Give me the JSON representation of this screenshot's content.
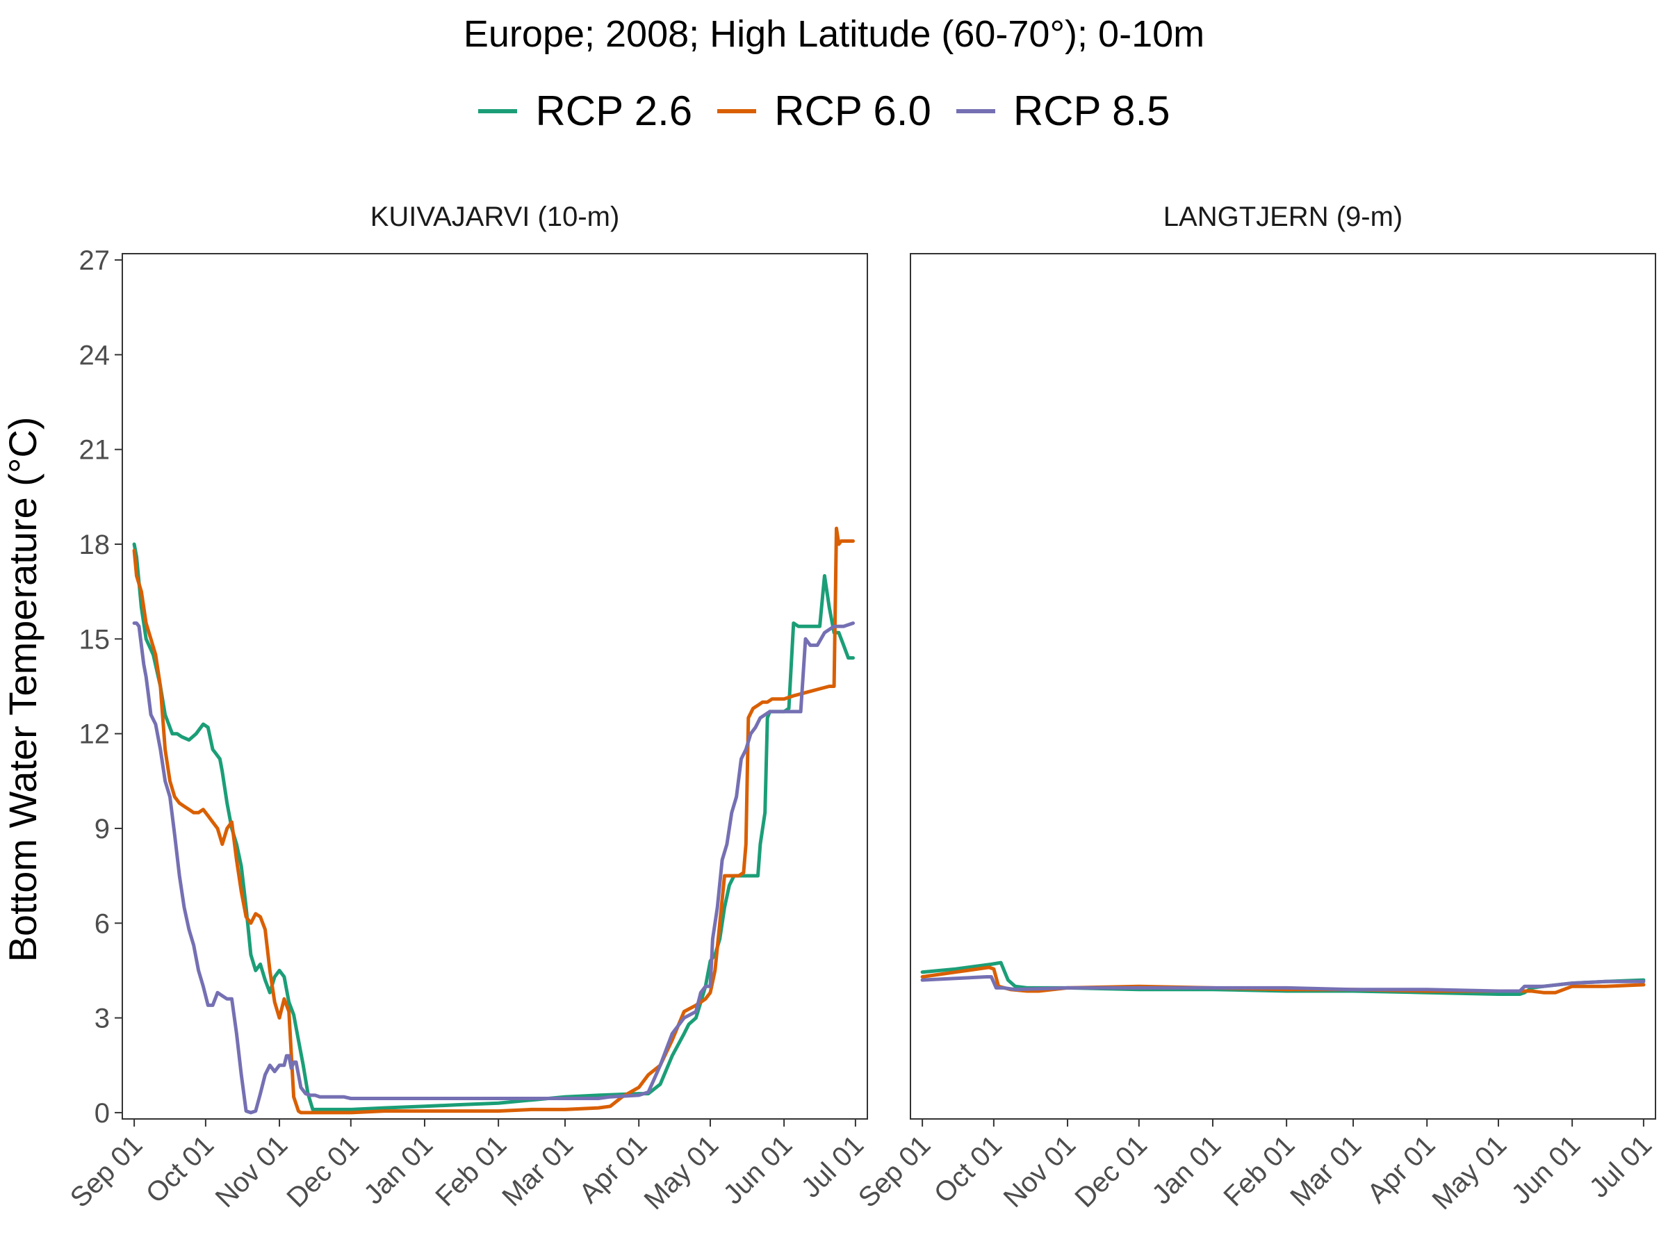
{
  "title": "Europe;  2008;  High Latitude (60-70°);  0-10m",
  "legend": [
    {
      "name": "RCP 2.6",
      "color": "#1b9e77"
    },
    {
      "name": "RCP 6.0",
      "color": "#d95f02"
    },
    {
      "name": "RCP 8.5",
      "color": "#7570b3"
    }
  ],
  "chart_data": [
    {
      "type": "line",
      "title": "KUIVAJARVI (10-m)",
      "ylabel": "Bottom Water Temperature (°C)",
      "xlabel": "",
      "x_ticks": [
        "Sep 01",
        "Oct 01",
        "Nov 01",
        "Dec 01",
        "Jan 01",
        "Feb 01",
        "Mar 01",
        "Apr 01",
        "May 01",
        "Jun 01",
        "Jul 01"
      ],
      "y_ticks": [
        0,
        3,
        6,
        9,
        12,
        15,
        18,
        21,
        24,
        27
      ],
      "ylim": [
        0,
        27
      ],
      "grid": false,
      "series": [
        {
          "name": "RCP 2.6",
          "x": [
            "Sep 01",
            "Sep 02",
            "Sep 04",
            "Sep 06",
            "Sep 09",
            "Sep 12",
            "Sep 14",
            "Sep 17",
            "Sep 19",
            "Sep 21",
            "Sep 24",
            "Sep 27",
            "Sep 30",
            "Oct 02",
            "Oct 04",
            "Oct 05",
            "Oct 07",
            "Oct 08",
            "Oct 10",
            "Oct 12",
            "Oct 14",
            "Oct 16",
            "Oct 18",
            "Oct 20",
            "Oct 22",
            "Oct 24",
            "Oct 26",
            "Oct 28",
            "Oct 30",
            "Nov 01",
            "Nov 03",
            "Nov 05",
            "Nov 07",
            "Nov 09",
            "Nov 11",
            "Nov 13",
            "Nov 15",
            "Nov 17",
            "Nov 19",
            "Nov 20",
            "Nov 21",
            "Nov 22",
            "Nov 23",
            "Dec 01",
            "Dec 15",
            "Jan 01",
            "Jan 15",
            "Feb 01",
            "Feb 15",
            "Mar 01",
            "Mar 15",
            "Apr 01",
            "Apr 05",
            "Apr 10",
            "Apr 15",
            "Apr 20",
            "Apr 22",
            "Apr 25",
            "Apr 27",
            "Apr 29",
            "May 01",
            "May 03",
            "May 05",
            "May 07",
            "May 09",
            "May 11",
            "May 13",
            "May 15",
            "May 17",
            "May 19",
            "May 21",
            "May 22",
            "May 23",
            "May 24",
            "May 25",
            "May 26",
            "May 27",
            "May 28",
            "May 29",
            "May 30",
            "Jun 01",
            "Jun 03",
            "Jun 05",
            "Jun 07",
            "Jun 10",
            "Jun 13",
            "Jun 16",
            "Jun 18",
            "Jun 20",
            "Jun 22",
            "Jun 24",
            "Jun 26",
            "Jun 28",
            "Jun 30"
          ],
          "y": [
            18.0,
            17.6,
            16.0,
            15.0,
            14.5,
            13.5,
            12.6,
            12.0,
            12.0,
            11.9,
            11.8,
            12.0,
            12.3,
            12.2,
            11.5,
            11.4,
            11.2,
            10.8,
            9.8,
            9.0,
            8.5,
            7.8,
            6.5,
            5.0,
            4.5,
            4.7,
            4.2,
            3.8,
            4.3,
            4.5,
            4.3,
            3.5,
            3.1,
            2.3,
            1.5,
            0.6,
            0.1,
            0.1,
            0.1,
            0.1,
            0.1,
            0.1,
            0.1,
            0.1,
            0.15,
            0.2,
            0.25,
            0.3,
            0.4,
            0.5,
            0.55,
            0.6,
            0.6,
            0.9,
            1.8,
            2.5,
            2.8,
            3.0,
            3.5,
            4.0,
            4.8,
            5.0,
            5.5,
            6.5,
            7.2,
            7.5,
            7.5,
            7.5,
            7.5,
            7.5,
            7.5,
            8.5,
            9.0,
            9.5,
            12.5,
            12.7,
            12.7,
            12.7,
            12.7,
            12.7,
            12.7,
            12.8,
            15.5,
            15.4,
            15.4,
            15.4,
            15.4,
            17.0,
            16.0,
            15.2,
            15.2,
            14.8,
            14.4,
            14.4
          ]
        },
        {
          "name": "RCP 6.0",
          "x": [
            "Sep 01",
            "Sep 02",
            "Sep 04",
            "Sep 06",
            "Sep 08",
            "Sep 10",
            "Sep 12",
            "Sep 14",
            "Sep 16",
            "Sep 18",
            "Sep 20",
            "Sep 22",
            "Sep 24",
            "Sep 26",
            "Sep 28",
            "Sep 30",
            "Oct 02",
            "Oct 04",
            "Oct 06",
            "Oct 08",
            "Oct 10",
            "Oct 12",
            "Oct 14",
            "Oct 16",
            "Oct 18",
            "Oct 20",
            "Oct 22",
            "Oct 24",
            "Oct 26",
            "Oct 28",
            "Oct 30",
            "Nov 01",
            "Nov 03",
            "Nov 05",
            "Nov 07",
            "Nov 09",
            "Nov 10",
            "Nov 11",
            "Nov 12",
            "Nov 13",
            "Nov 20",
            "Dec 01",
            "Dec 15",
            "Jan 01",
            "Jan 15",
            "Feb 01",
            "Feb 15",
            "Mar 01",
            "Mar 15",
            "Mar 20",
            "Mar 25",
            "Apr 01",
            "Apr 05",
            "Apr 10",
            "Apr 15",
            "Apr 20",
            "Apr 25",
            "Apr 27",
            "Apr 29",
            "May 01",
            "May 03",
            "May 05",
            "May 07",
            "May 09",
            "May 11",
            "May 13",
            "May 15",
            "May 16",
            "May 17",
            "May 19",
            "May 21",
            "May 23",
            "May 25",
            "May 27",
            "May 29",
            "Jun 01",
            "Jun 05",
            "Jun 10",
            "Jun 15",
            "Jun 20",
            "Jun 22",
            "Jun 23",
            "Jun 24",
            "Jun 25",
            "Jun 27",
            "Jun 30"
          ],
          "y": [
            17.8,
            17.0,
            16.5,
            15.5,
            15.0,
            14.5,
            13.5,
            11.5,
            10.5,
            10.0,
            9.8,
            9.7,
            9.6,
            9.5,
            9.5,
            9.6,
            9.4,
            9.2,
            9.0,
            8.5,
            9.0,
            9.2,
            8.0,
            7.0,
            6.2,
            6.0,
            6.3,
            6.2,
            5.8,
            4.5,
            3.5,
            3.0,
            3.6,
            3.2,
            0.5,
            0.05,
            0.0,
            0.0,
            0.0,
            0.0,
            0.0,
            0.0,
            0.05,
            0.05,
            0.05,
            0.05,
            0.1,
            0.1,
            0.15,
            0.2,
            0.5,
            0.8,
            1.2,
            1.5,
            2.3,
            3.2,
            3.4,
            3.5,
            3.6,
            3.8,
            4.5,
            6.0,
            7.5,
            7.5,
            7.5,
            7.5,
            7.6,
            8.5,
            12.5,
            12.8,
            12.9,
            13.0,
            13.0,
            13.1,
            13.1,
            13.1,
            13.2,
            13.3,
            13.4,
            13.5,
            13.5,
            18.5,
            18.0,
            18.1,
            18.1,
            18.1
          ]
        },
        {
          "name": "RCP 8.5",
          "x": [
            "Sep 01",
            "Sep 02",
            "Sep 03",
            "Sep 04",
            "Sep 05",
            "Sep 06",
            "Sep 07",
            "Sep 08",
            "Sep 10",
            "Sep 12",
            "Sep 14",
            "Sep 16",
            "Sep 18",
            "Sep 20",
            "Sep 22",
            "Sep 24",
            "Sep 26",
            "Sep 28",
            "Sep 30",
            "Oct 02",
            "Oct 04",
            "Oct 06",
            "Oct 08",
            "Oct 10",
            "Oct 12",
            "Oct 14",
            "Oct 16",
            "Oct 18",
            "Oct 20",
            "Oct 22",
            "Oct 24",
            "Oct 26",
            "Oct 28",
            "Oct 30",
            "Nov 01",
            "Nov 03",
            "Nov 04",
            "Nov 05",
            "Nov 06",
            "Nov 07",
            "Nov 08",
            "Nov 10",
            "Nov 12",
            "Nov 14",
            "Nov 16",
            "Nov 18",
            "Nov 20",
            "Nov 22",
            "Nov 24",
            "Nov 26",
            "Nov 28",
            "Dec 01",
            "Dec 10",
            "Dec 20",
            "Jan 01",
            "Jan 15",
            "Feb 01",
            "Feb 15",
            "Mar 01",
            "Mar 15",
            "Mar 20",
            "Apr 01",
            "Apr 05",
            "Apr 10",
            "Apr 15",
            "Apr 20",
            "Apr 25",
            "Apr 27",
            "Apr 29",
            "May 01",
            "May 02",
            "May 04",
            "May 06",
            "May 08",
            "May 10",
            "May 12",
            "May 14",
            "May 16",
            "May 18",
            "May 20",
            "May 22",
            "May 24",
            "May 26",
            "May 28",
            "May 30",
            "Jun 01",
            "Jun 05",
            "Jun 08",
            "Jun 10",
            "Jun 12",
            "Jun 15",
            "Jun 18",
            "Jun 22",
            "Jun 26",
            "Jun 30"
          ],
          "y": [
            15.5,
            15.5,
            15.4,
            14.8,
            14.2,
            13.8,
            13.2,
            12.6,
            12.3,
            11.5,
            10.5,
            10.0,
            8.8,
            7.5,
            6.5,
            5.8,
            5.3,
            4.5,
            4.0,
            3.4,
            3.4,
            3.8,
            3.7,
            3.6,
            3.6,
            2.5,
            1.2,
            0.05,
            0.0,
            0.05,
            0.6,
            1.2,
            1.5,
            1.3,
            1.5,
            1.5,
            1.8,
            1.8,
            1.4,
            1.6,
            1.6,
            0.8,
            0.6,
            0.55,
            0.55,
            0.5,
            0.5,
            0.5,
            0.5,
            0.5,
            0.5,
            0.45,
            0.45,
            0.45,
            0.45,
            0.45,
            0.45,
            0.45,
            0.45,
            0.45,
            0.5,
            0.55,
            0.65,
            1.5,
            2.5,
            3.0,
            3.2,
            3.8,
            4.0,
            4.0,
            5.5,
            6.5,
            8.0,
            8.5,
            9.5,
            10.0,
            11.2,
            11.5,
            12.0,
            12.2,
            12.5,
            12.6,
            12.7,
            12.7,
            12.7,
            12.7,
            12.7,
            12.7,
            15.0,
            14.8,
            14.8,
            15.2,
            15.4,
            15.4,
            15.5
          ]
        }
      ]
    },
    {
      "type": "line",
      "title": "LANGTJERN (9-m)",
      "ylabel": "Bottom Water Temperature (°C)",
      "xlabel": "",
      "x_ticks": [
        "Sep 01",
        "Oct 01",
        "Nov 01",
        "Dec 01",
        "Jan 01",
        "Feb 01",
        "Mar 01",
        "Apr 01",
        "May 01",
        "Jun 01",
        "Jul 01"
      ],
      "y_ticks": [
        0,
        3,
        6,
        9,
        12,
        15,
        18,
        21,
        24,
        27
      ],
      "ylim": [
        0,
        27
      ],
      "grid": false,
      "series": [
        {
          "name": "RCP 2.6",
          "x": [
            "Sep 01",
            "Sep 15",
            "Sep 30",
            "Oct 04",
            "Oct 07",
            "Oct 10",
            "Oct 15",
            "Nov 01",
            "Dec 01",
            "Jan 01",
            "Feb 01",
            "Mar 01",
            "Apr 01",
            "May 01",
            "May 10",
            "May 12",
            "May 15",
            "May 20",
            "Jun 01",
            "Jun 15",
            "Jul 01"
          ],
          "y": [
            4.45,
            4.55,
            4.7,
            4.75,
            4.2,
            4.0,
            3.95,
            3.95,
            3.9,
            3.9,
            3.85,
            3.85,
            3.8,
            3.75,
            3.75,
            3.8,
            3.95,
            4.0,
            4.1,
            4.15,
            4.2
          ]
        },
        {
          "name": "RCP 6.0",
          "x": [
            "Sep 01",
            "Sep 15",
            "Sep 29",
            "Oct 01",
            "Oct 03",
            "Oct 08",
            "Oct 15",
            "Oct 20",
            "Nov 01",
            "Dec 01",
            "Jan 01",
            "Feb 01",
            "Mar 01",
            "Apr 01",
            "May 01",
            "May 10",
            "May 15",
            "May 20",
            "May 25",
            "Jun 01",
            "Jun 15",
            "Jul 01"
          ],
          "y": [
            4.3,
            4.45,
            4.6,
            4.55,
            4.0,
            3.9,
            3.85,
            3.85,
            3.95,
            4.0,
            3.95,
            3.9,
            3.9,
            3.85,
            3.85,
            3.85,
            3.85,
            3.8,
            3.8,
            4.0,
            4.0,
            4.05
          ]
        },
        {
          "name": "RCP 8.5",
          "x": [
            "Sep 01",
            "Sep 15",
            "Sep 28",
            "Sep 30",
            "Oct 02",
            "Oct 05",
            "Oct 10",
            "Nov 01",
            "Dec 01",
            "Jan 01",
            "Feb 01",
            "Mar 01",
            "Apr 01",
            "May 01",
            "May 10",
            "May 12",
            "May 20",
            "Jun 01",
            "Jun 15",
            "Jul 01"
          ],
          "y": [
            4.2,
            4.25,
            4.3,
            4.3,
            3.95,
            3.95,
            3.9,
            3.95,
            3.95,
            3.95,
            3.95,
            3.9,
            3.9,
            3.85,
            3.85,
            4.0,
            4.0,
            4.1,
            4.15,
            4.15
          ]
        }
      ]
    }
  ]
}
